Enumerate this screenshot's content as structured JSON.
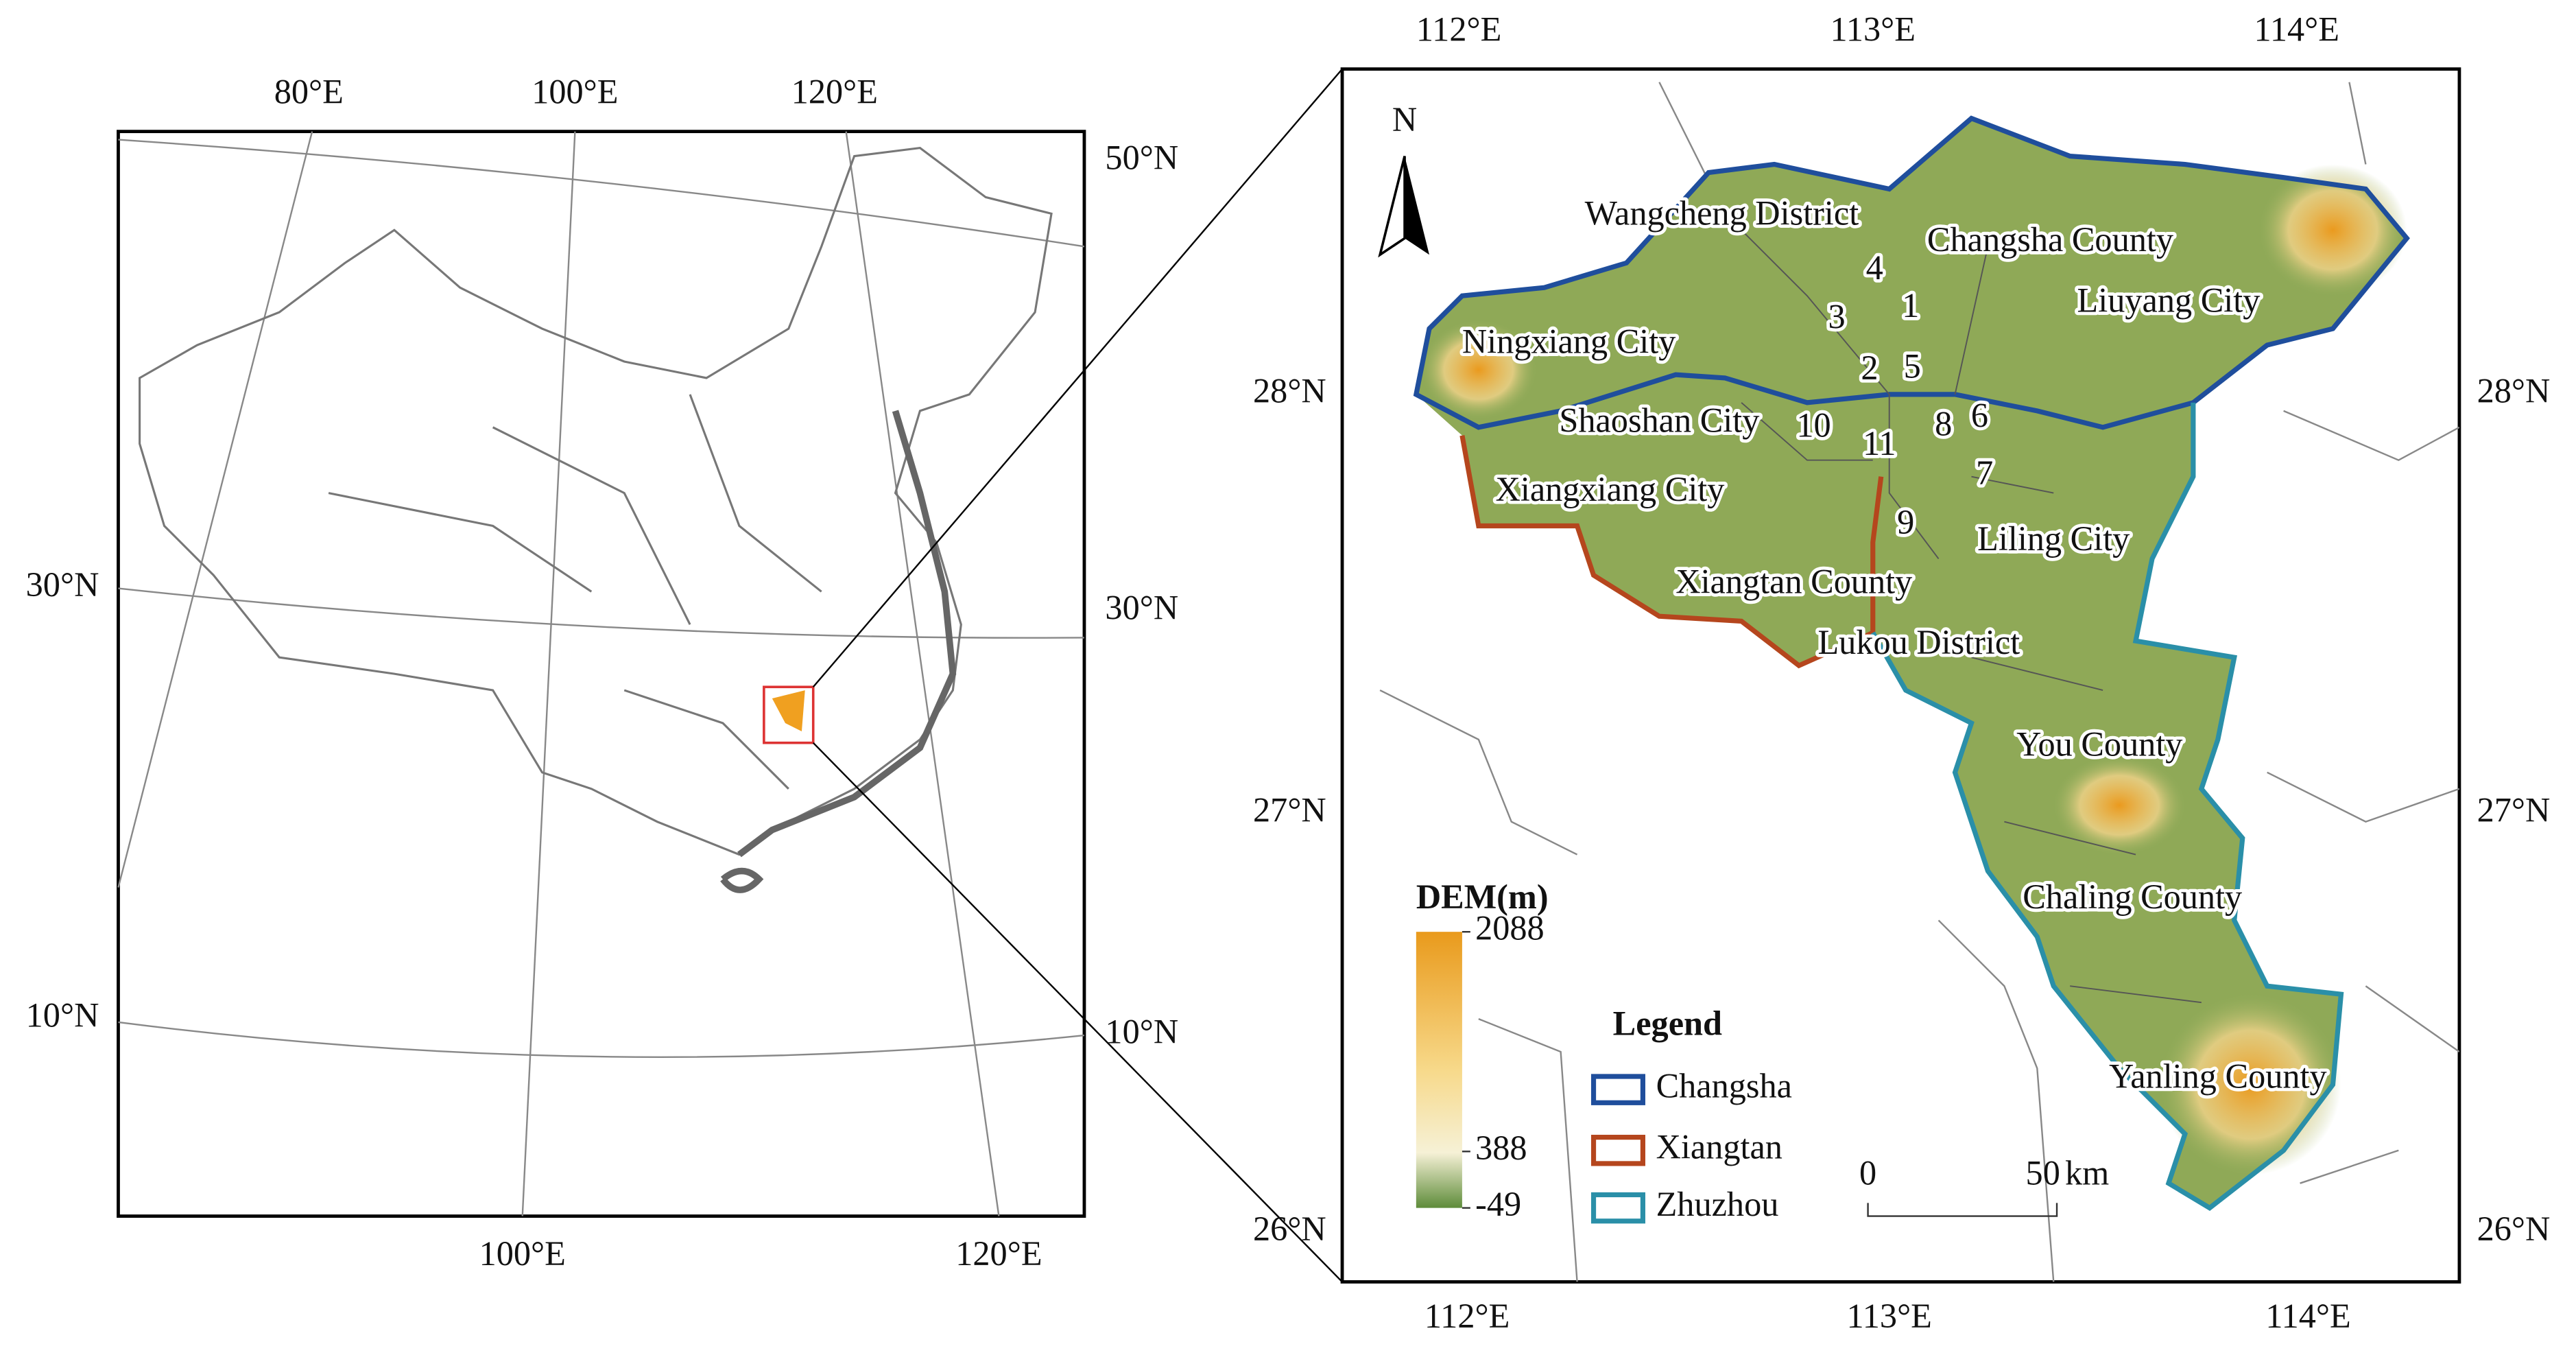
{
  "left_map": {
    "top_labels": [
      "80°E",
      "100°E",
      "120°E"
    ],
    "bottom_labels": [
      "100°E",
      "120°E"
    ],
    "left_labels": [
      "30°N",
      "10°N"
    ],
    "right_labels": [
      "50°N",
      "30°N",
      "10°N"
    ]
  },
  "right_map": {
    "top_labels": [
      "112°E",
      "113°E",
      "114°E"
    ],
    "bottom_labels": [
      "112°E",
      "113°E",
      "114°E"
    ],
    "left_labels": [
      "28°N",
      "27°N",
      "26°N"
    ],
    "right_labels": [
      "28°N",
      "27°N",
      "26°N"
    ],
    "north": "N",
    "place_names": [
      "Wangcheng District",
      "Changsha County",
      "Liuyang City",
      "Ningxiang City",
      "Shaoshan City",
      "Xiangxiang City",
      "Liling City",
      "Xiangtan County",
      "Lukou District",
      "You County",
      "Chaling County",
      "Yanling County"
    ],
    "district_numbers": [
      1,
      2,
      3,
      4,
      5,
      6,
      7,
      8,
      9,
      10,
      11
    ]
  },
  "legend": {
    "title": "Legend",
    "items": [
      "Changsha",
      "Xiangtan",
      "Zhuzhou"
    ]
  },
  "dem": {
    "title": "DEM(m)",
    "max": 2088,
    "mid": 388,
    "min": -49
  },
  "scale_bar": {
    "start": 0,
    "end": 50,
    "unit": "km"
  }
}
